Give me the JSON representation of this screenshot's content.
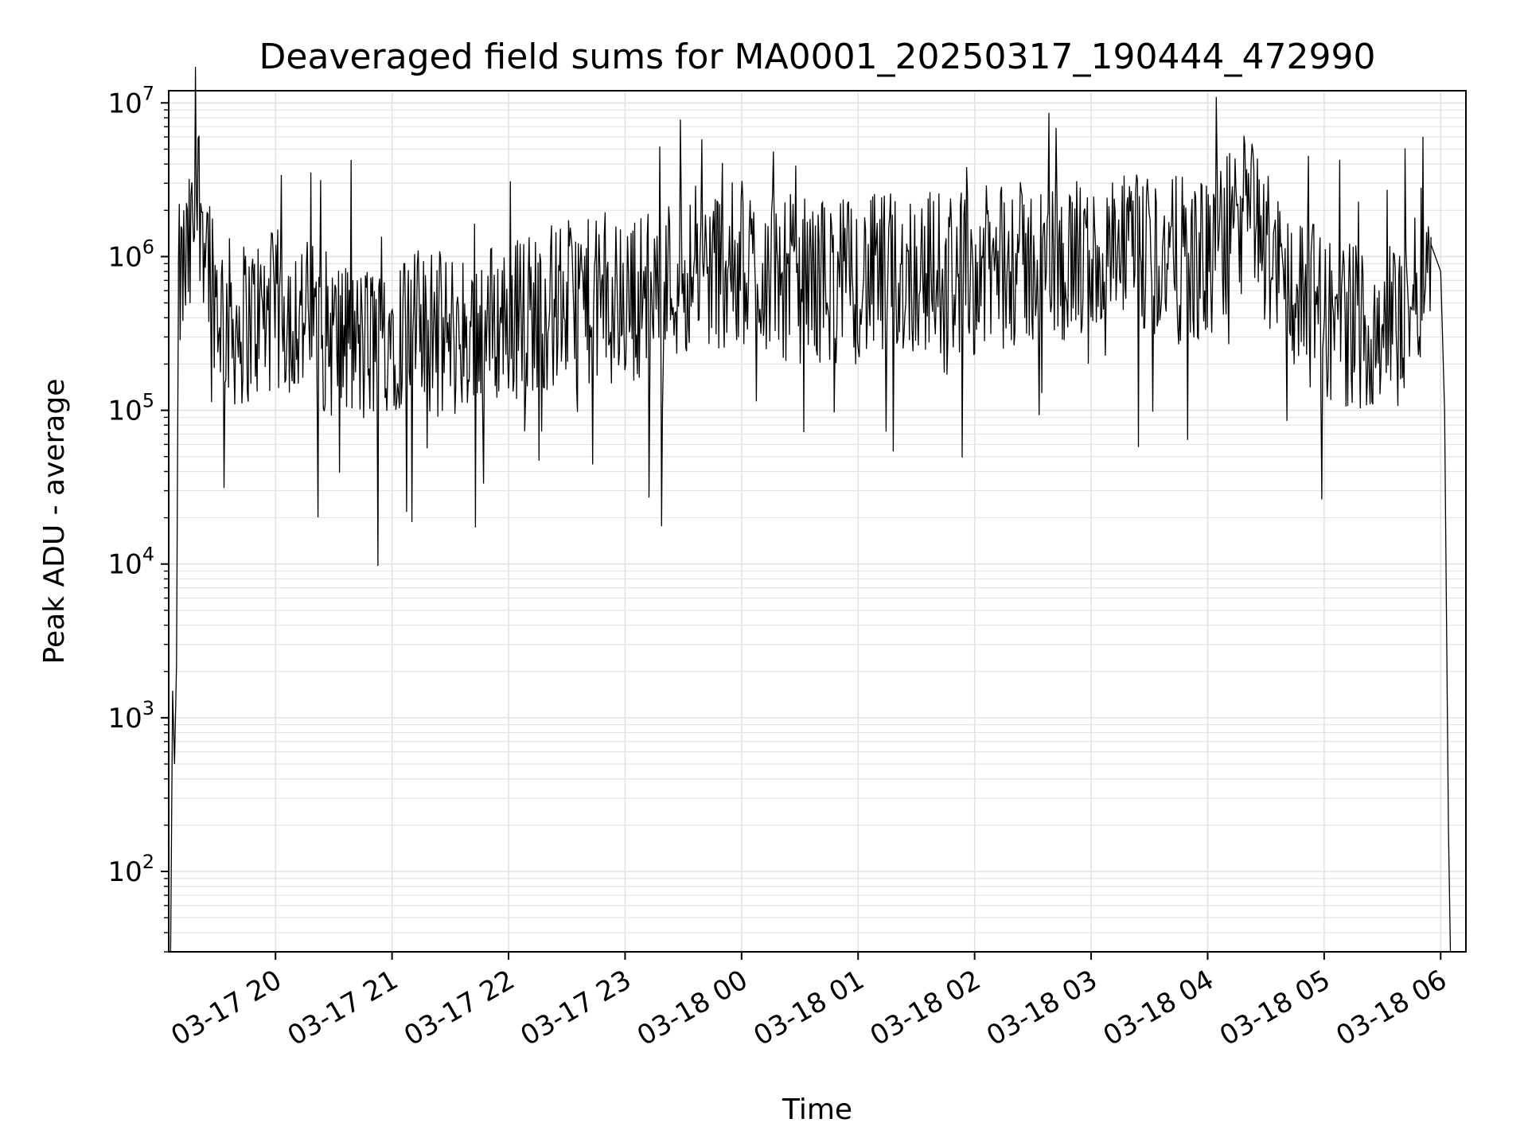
{
  "chart_data": {
    "type": "line",
    "title": "Deaveraged field sums for MA0001_20250317_190444_472990",
    "xlabel": "Time",
    "ylabel": "Peak ADU - average",
    "yscale": "log",
    "ylim": [
      30,
      12000000
    ],
    "xlim": [
      "2025-03-17 19:05",
      "2025-03-18 06:13"
    ],
    "grid": true,
    "grid_color": "#e3e3e3",
    "line_color": "#000000",
    "x_tick_labels": [
      "03-17 20",
      "03-17 21",
      "03-17 22",
      "03-17 23",
      "03-18 00",
      "03-18 01",
      "03-18 02",
      "03-18 03",
      "03-18 04",
      "03-18 05",
      "03-18 06"
    ],
    "y_tick_labels": [
      {
        "base": "10",
        "exp": "2"
      },
      {
        "base": "10",
        "exp": "3"
      },
      {
        "base": "10",
        "exp": "4"
      },
      {
        "base": "10",
        "exp": "5"
      },
      {
        "base": "10",
        "exp": "6"
      },
      {
        "base": "10",
        "exp": "7"
      }
    ],
    "series": [
      {
        "x": [
          "2025-03-17 19:06",
          "2025-03-17 19:07",
          "2025-03-17 19:08",
          "2025-03-17 19:09",
          "2025-03-17 19:10",
          "2025-03-17 19:13",
          "2025-03-17 19:16",
          "2025-03-17 19:20",
          "2025-03-17 19:25",
          "2025-03-17 19:30",
          "2025-03-17 19:35",
          "2025-03-17 19:40",
          "2025-03-17 19:50",
          "2025-03-17 20:08",
          "2025-03-17 20:30",
          "2025-03-17 20:45",
          "2025-03-17 21:00",
          "2025-03-17 21:30",
          "2025-03-17 22:00",
          "2025-03-17 22:30",
          "2025-03-17 23:00",
          "2025-03-17 23:30",
          "2025-03-18 00:00",
          "2025-03-18 00:30",
          "2025-03-18 01:00",
          "2025-03-18 01:30",
          "2025-03-18 02:00",
          "2025-03-18 02:30",
          "2025-03-18 03:00",
          "2025-03-18 03:30",
          "2025-03-18 04:00",
          "2025-03-18 04:20",
          "2025-03-18 04:40",
          "2025-03-18 05:00",
          "2025-03-18 05:20",
          "2025-03-18 05:40",
          "2025-03-18 05:50",
          "2025-03-18 05:55",
          "2025-03-18 06:00",
          "2025-03-18 06:02",
          "2025-03-18 06:04",
          "2025-03-18 06:05"
        ],
        "y": [
          30,
          1500,
          500,
          2200,
          600000,
          800000,
          1000000,
          2800000,
          1200000,
          500000,
          400000,
          350000,
          400000,
          450000,
          300000,
          250000,
          350000,
          300000,
          400000,
          500000,
          500000,
          800000,
          900000,
          700000,
          700000,
          800000,
          800000,
          900000,
          900000,
          1000000,
          900000,
          2000000,
          700000,
          400000,
          350000,
          400000,
          800000,
          1200000,
          800000,
          100000,
          200,
          30
        ]
      }
    ]
  }
}
